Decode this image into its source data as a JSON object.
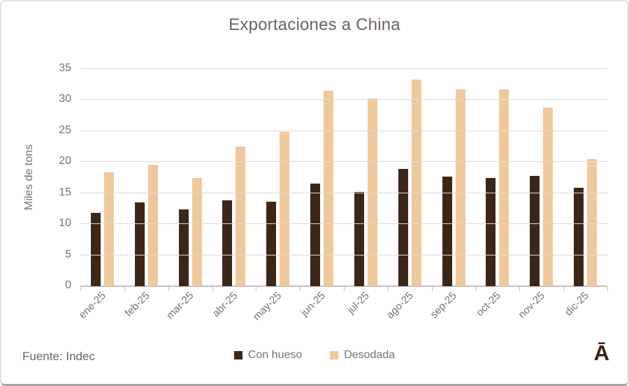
{
  "card": {
    "source": "Fuente: Indec",
    "logo": "Ā"
  },
  "chart_data": {
    "type": "bar",
    "title": "Exportaciones a China",
    "xlabel": "",
    "ylabel": "Miles de tons",
    "ylim": [
      0,
      35
    ],
    "ytick_step": 5,
    "grid": true,
    "legend_position": "bottom",
    "categories": [
      "ene-25",
      "feb-25",
      "mar-25",
      "abr-25",
      "may-25",
      "jun-25",
      "jul-25",
      "ago-25",
      "sep-25",
      "oct-25",
      "nov-25",
      "dic-25"
    ],
    "series": [
      {
        "name": "Con hueso",
        "color": "#3B2718",
        "values": [
          11.8,
          13.5,
          12.4,
          13.8,
          13.6,
          16.5,
          15.2,
          18.9,
          17.7,
          17.5,
          17.8,
          15.9
        ]
      },
      {
        "name": "Desodada",
        "color": "#F0C89E",
        "values": [
          18.4,
          19.6,
          17.4,
          22.5,
          24.9,
          31.5,
          30.3,
          33.3,
          31.7,
          31.7,
          28.8,
          20.5
        ]
      }
    ]
  },
  "colors": {
    "grid": "#DCD8D8",
    "axis": "#C7BCBC",
    "title_text": "#6E6363",
    "tick_text": "#7B7070",
    "logo": "#3A2214",
    "con_hueso": "#3B2718",
    "desodada": "#F0C89E"
  }
}
